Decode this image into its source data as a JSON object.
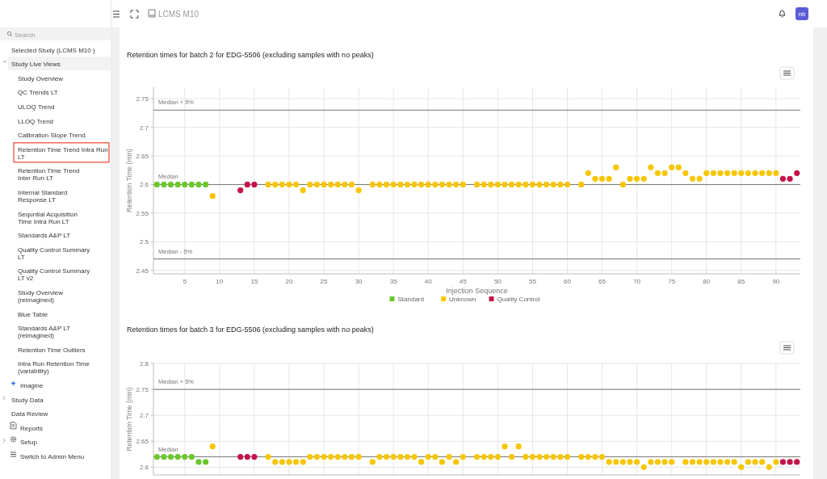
{
  "chart_data": [
    {
      "type": "other",
      "title": "LCMS M10",
      "annotations": [
        "Search",
        "Selected Study (LCMS M10 )",
        "Study Live Views",
        "Study Overview",
        "QC Trends LT",
        "ULOQ Trend",
        "LLOQ Trend",
        "Calibration Slope Trend",
        "Retention Time Trend Intra Run LT",
        "Retention Time Trend Inter Run LT",
        "Internal Standard Response LT",
        "Sequntial Acquisition Time Intra Run LT",
        "Standards A&P LT",
        "Quality Control Summary LT",
        "Quality Control Summary LT v2",
        "Study Overview (reimagined)",
        "Blue Table",
        "Standards A&P LT (reimagined)",
        "Retention Time Outliers",
        "Intra Run Retention Time (variability)",
        "Imagine",
        "Study Data",
        "Data Review",
        "Reports",
        "Setup",
        "Switch to Admin Menu",
        "nb"
      ]
    },
    {
      "type": "scatter",
      "title": "Retention times for batch 2 for EDG-5506 (excluding samples with no peaks)",
      "xlabel": "Injection Sequence",
      "ylabel": "Retention Time (min)",
      "xlim": [
        0.5,
        93.5
      ],
      "ylim": [
        2.444,
        2.77
      ],
      "xticks": [
        5,
        10,
        15,
        20,
        25,
        30,
        35,
        40,
        45,
        50,
        55,
        60,
        65,
        70,
        75,
        80,
        85,
        90
      ],
      "yticks": [
        2.45,
        2.5,
        2.55,
        2.6,
        2.65,
        2.7,
        2.75
      ],
      "grid": true,
      "legend": "bottom",
      "marker": "circle",
      "ref_lines": [
        {
          "axis": "y",
          "value": 2.73,
          "label": "Median + 5%"
        },
        {
          "axis": "y",
          "value": 2.6,
          "label": "Median"
        },
        {
          "axis": "y",
          "value": 2.47,
          "label": "Median - 5%"
        }
      ],
      "series": [
        {
          "name": "Standard",
          "color": "#6cc72e",
          "x": [
            1,
            2,
            3,
            4,
            5,
            6,
            7,
            8
          ],
          "values": [
            2.6,
            2.6,
            2.6,
            2.6,
            2.6,
            2.6,
            2.6,
            2.6
          ]
        },
        {
          "name": "Unknown",
          "color": "#f7c600",
          "x": [
            9,
            17,
            18,
            19,
            20,
            21,
            22,
            23,
            24,
            25,
            26,
            27,
            28,
            29,
            30,
            32,
            33,
            34,
            35,
            36,
            37,
            38,
            39,
            40,
            41,
            42,
            43,
            44,
            45,
            47,
            48,
            49,
            50,
            51,
            52,
            53,
            54,
            55,
            56,
            57,
            58,
            59,
            60,
            62,
            63,
            64,
            65,
            66,
            67,
            68,
            69,
            70,
            71,
            72,
            73,
            74,
            75,
            76,
            77,
            78,
            79,
            80,
            81,
            82,
            83,
            84,
            85,
            86,
            87,
            88,
            89,
            90
          ],
          "values": [
            2.58,
            2.6,
            2.6,
            2.6,
            2.6,
            2.6,
            2.59,
            2.6,
            2.6,
            2.6,
            2.6,
            2.6,
            2.6,
            2.6,
            2.59,
            2.6,
            2.6,
            2.6,
            2.6,
            2.6,
            2.6,
            2.6,
            2.6,
            2.6,
            2.6,
            2.6,
            2.6,
            2.6,
            2.6,
            2.6,
            2.6,
            2.6,
            2.6,
            2.6,
            2.6,
            2.6,
            2.6,
            2.6,
            2.6,
            2.6,
            2.6,
            2.6,
            2.6,
            2.6,
            2.62,
            2.61,
            2.61,
            2.61,
            2.63,
            2.6,
            2.61,
            2.61,
            2.61,
            2.63,
            2.62,
            2.62,
            2.63,
            2.63,
            2.62,
            2.61,
            2.61,
            2.62,
            2.62,
            2.62,
            2.62,
            2.62,
            2.62,
            2.62,
            2.62,
            2.62,
            2.62,
            2.62
          ]
        },
        {
          "name": "Quality Control",
          "color": "#c3144a",
          "x": [
            13,
            14,
            15,
            91,
            92,
            93
          ],
          "values": [
            2.59,
            2.6,
            2.6,
            2.61,
            2.61,
            2.62
          ]
        }
      ]
    },
    {
      "type": "scatter",
      "title": "Retention times for batch 3 for EDG-5506 (excluding samples with no peaks)",
      "ylabel": "Retention Time (min)",
      "xlim": [
        0.5,
        93.5
      ],
      "ylim": [
        2.585,
        2.8
      ],
      "xticks": [
        5,
        10,
        15,
        20,
        25,
        30,
        35,
        40,
        45,
        50,
        55,
        60,
        65,
        70,
        75,
        80,
        85,
        90
      ],
      "yticks": [
        2.6,
        2.65,
        2.7,
        2.75,
        2.8
      ],
      "grid": true,
      "tick_labels": "y",
      "marker": "circle",
      "ref_lines": [
        {
          "axis": "y",
          "value": 2.75,
          "label": "Median + 5%"
        },
        {
          "axis": "y",
          "value": 2.62,
          "label": "Median"
        }
      ],
      "series": [
        {
          "color": "#6cc72e",
          "x": [
            1,
            2,
            3,
            4,
            5,
            6,
            7,
            8
          ],
          "values": [
            2.62,
            2.62,
            2.62,
            2.62,
            2.62,
            2.62,
            2.61,
            2.61
          ]
        },
        {
          "color": "#f7c600",
          "x": [
            9,
            17,
            18,
            19,
            20,
            21,
            22,
            23,
            24,
            25,
            26,
            27,
            28,
            29,
            30,
            32,
            33,
            34,
            35,
            36,
            37,
            38,
            39,
            40,
            41,
            42,
            43,
            44,
            45,
            47,
            48,
            49,
            50,
            51,
            52,
            53,
            54,
            55,
            56,
            57,
            58,
            59,
            60,
            62,
            63,
            64,
            65,
            66,
            67,
            68,
            69,
            70,
            71,
            72,
            73,
            74,
            75,
            77,
            78,
            79,
            80,
            81,
            82,
            83,
            84,
            85,
            86,
            87,
            88,
            89,
            90
          ],
          "values": [
            2.64,
            2.62,
            2.61,
            2.61,
            2.61,
            2.61,
            2.61,
            2.62,
            2.62,
            2.62,
            2.62,
            2.62,
            2.62,
            2.62,
            2.62,
            2.61,
            2.62,
            2.62,
            2.62,
            2.62,
            2.62,
            2.62,
            2.61,
            2.62,
            2.62,
            2.61,
            2.62,
            2.61,
            2.62,
            2.62,
            2.62,
            2.62,
            2.62,
            2.64,
            2.62,
            2.64,
            2.62,
            2.62,
            2.62,
            2.62,
            2.62,
            2.62,
            2.62,
            2.62,
            2.62,
            2.62,
            2.62,
            2.61,
            2.61,
            2.61,
            2.61,
            2.61,
            2.6,
            2.61,
            2.61,
            2.61,
            2.61,
            2.61,
            2.61,
            2.61,
            2.61,
            2.61,
            2.61,
            2.61,
            2.61,
            2.6,
            2.61,
            2.61,
            2.61,
            2.6,
            2.61
          ]
        },
        {
          "color": "#c3144a",
          "x": [
            13,
            14,
            15,
            91,
            92,
            93
          ],
          "values": [
            2.62,
            2.62,
            2.62,
            2.61,
            2.61,
            2.61
          ]
        }
      ]
    }
  ]
}
